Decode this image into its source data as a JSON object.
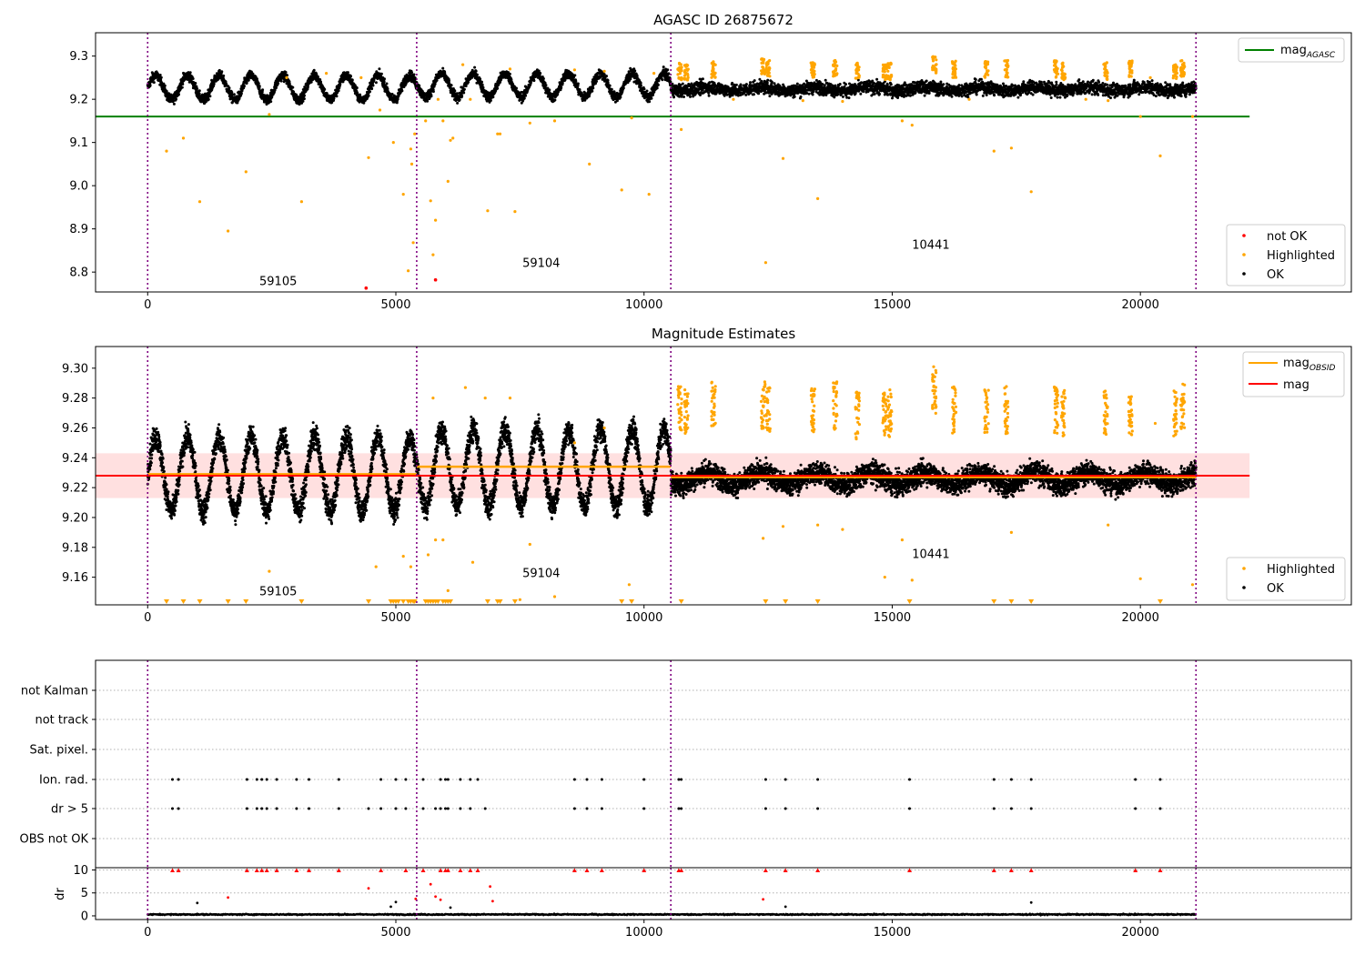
{
  "figure": {
    "suptitle": "AGASC ID 26875672"
  },
  "chart_data": [
    {
      "type": "scatter",
      "title": "AGASC ID 26875672",
      "xlim": [
        -1050,
        24250
      ],
      "ylim": [
        8.754,
        9.354
      ],
      "xticks": [
        0,
        5000,
        10000,
        15000,
        20000
      ],
      "yticks": [
        8.8,
        8.9,
        9.0,
        9.1,
        9.2,
        9.3
      ],
      "ytick_labels": [
        "8.8",
        "8.9",
        "9.0",
        "9.1",
        "9.2",
        "9.3"
      ],
      "obsid_boundaries": [
        0,
        5420,
        10540,
        21120
      ],
      "obsid_labels": [
        {
          "text": "59105",
          "x": 2250,
          "y": 8.77
        },
        {
          "text": "59104",
          "x": 7550,
          "y": 8.812
        },
        {
          "text": "10441",
          "x": 15400,
          "y": 8.854
        }
      ],
      "agasc_mag": 9.16,
      "agasc_line_x": [
        -1050,
        22200
      ],
      "ok_band": {
        "segments": [
          {
            "x0": 0,
            "x1": 5420,
            "mean": 9.227,
            "amp": 0.028,
            "period": 640,
            "noise": 0.012
          },
          {
            "x0": 5420,
            "x1": 10540,
            "mean": 9.232,
            "amp": 0.027,
            "period": 640,
            "noise": 0.012
          },
          {
            "x0": 10540,
            "x1": 21120,
            "mean": 9.224,
            "amp": 0.004,
            "period": 1100,
            "noise": 0.016
          }
        ],
        "color": "#000000"
      },
      "highlighted_clusters": [
        [
          10720,
          9.265
        ],
        [
          10850,
          9.262
        ],
        [
          11400,
          9.27
        ],
        [
          12400,
          9.275
        ],
        [
          12500,
          9.27
        ],
        [
          13400,
          9.27
        ],
        [
          13850,
          9.272
        ],
        [
          14300,
          9.265
        ],
        [
          14850,
          9.262
        ],
        [
          14950,
          9.265
        ],
        [
          15850,
          9.28
        ],
        [
          16250,
          9.27
        ],
        [
          16900,
          9.268
        ],
        [
          17300,
          9.27
        ],
        [
          18300,
          9.27
        ],
        [
          18450,
          9.265
        ],
        [
          19300,
          9.265
        ],
        [
          19800,
          9.27
        ],
        [
          20700,
          9.265
        ],
        [
          20850,
          9.27
        ]
      ],
      "highlighted_points": [
        [
          380,
          9.08
        ],
        [
          720,
          9.11
        ],
        [
          1050,
          8.963
        ],
        [
          1620,
          8.895
        ],
        [
          1980,
          9.032
        ],
        [
          2450,
          9.165
        ],
        [
          3100,
          8.963
        ],
        [
          4450,
          9.065
        ],
        [
          4680,
          9.175
        ],
        [
          4950,
          9.1
        ],
        [
          5150,
          8.98
        ],
        [
          5250,
          8.803
        ],
        [
          5300,
          9.085
        ],
        [
          5320,
          9.05
        ],
        [
          5350,
          8.868
        ],
        [
          5380,
          9.12
        ],
        [
          5600,
          9.15
        ],
        [
          5700,
          8.965
        ],
        [
          5750,
          8.84
        ],
        [
          5800,
          8.92
        ],
        [
          5850,
          9.2
        ],
        [
          5950,
          9.15
        ],
        [
          6050,
          9.01
        ],
        [
          6100,
          9.105
        ],
        [
          6150,
          9.11
        ],
        [
          6500,
          9.2
        ],
        [
          6850,
          8.942
        ],
        [
          7050,
          9.12
        ],
        [
          7100,
          9.12
        ],
        [
          7400,
          8.94
        ],
        [
          7700,
          9.145
        ],
        [
          8200,
          9.15
        ],
        [
          8900,
          9.05
        ],
        [
          9550,
          8.99
        ],
        [
          9750,
          9.157
        ],
        [
          10100,
          8.98
        ],
        [
          10750,
          9.13
        ],
        [
          12450,
          8.822
        ],
        [
          12800,
          9.063
        ],
        [
          13500,
          8.97
        ],
        [
          14000,
          9.195
        ],
        [
          15200,
          9.15
        ],
        [
          15400,
          9.14
        ],
        [
          17050,
          9.08
        ],
        [
          17400,
          9.087
        ],
        [
          17800,
          8.986
        ],
        [
          19350,
          9.197
        ],
        [
          20000,
          9.16
        ],
        [
          20400,
          9.069
        ],
        [
          21050,
          9.16
        ],
        [
          2800,
          9.25
        ],
        [
          3600,
          9.26
        ],
        [
          4300,
          9.25
        ],
        [
          6350,
          9.28
        ],
        [
          7300,
          9.27
        ],
        [
          8600,
          9.268
        ],
        [
          9200,
          9.265
        ],
        [
          10200,
          9.26
        ],
        [
          11800,
          9.2
        ],
        [
          13200,
          9.197
        ],
        [
          16550,
          9.2
        ],
        [
          18900,
          9.2
        ],
        [
          20200,
          9.25
        ]
      ],
      "not_ok_points": [
        [
          4400,
          8.763
        ],
        [
          5800,
          8.782
        ]
      ],
      "legend_upper": [
        {
          "label": "mag",
          "subscript": "AGASC",
          "color": "#008000",
          "kind": "line"
        }
      ],
      "legend_lower": [
        {
          "label": "not OK",
          "color": "#ff0000",
          "kind": "dot"
        },
        {
          "label": "Highlighted",
          "color": "#ffa500",
          "kind": "dot"
        },
        {
          "label": "OK",
          "color": "#000000",
          "kind": "dot"
        }
      ]
    },
    {
      "type": "scatter",
      "title": "Magnitude Estimates",
      "xlim": [
        -1050,
        24250
      ],
      "ylim": [
        9.1415,
        9.3145
      ],
      "xticks": [
        0,
        5000,
        10000,
        15000,
        20000
      ],
      "yticks": [
        9.16,
        9.18,
        9.2,
        9.22,
        9.24,
        9.26,
        9.28,
        9.3
      ],
      "ytick_labels": [
        "9.16",
        "9.18",
        "9.20",
        "9.22",
        "9.24",
        "9.26",
        "9.28",
        "9.30"
      ],
      "obsid_boundaries": [
        0,
        5420,
        10540,
        21120
      ],
      "obsid_labels": [
        {
          "text": "59105",
          "x": 2250,
          "y": 9.148
        },
        {
          "text": "59104",
          "x": 7550,
          "y": 9.16
        },
        {
          "text": "10441",
          "x": 15400,
          "y": 9.173
        }
      ],
      "mag_overall": 9.228,
      "mag_band": [
        9.213,
        9.243
      ],
      "mag_line_x": [
        -1050,
        22200
      ],
      "mag_obsid": [
        {
          "x0": 0,
          "x1": 5420,
          "y": 9.229
        },
        {
          "x0": 5420,
          "x1": 10540,
          "y": 9.234
        },
        {
          "x0": 10540,
          "x1": 21120,
          "y": 9.227
        }
      ],
      "ok_band": {
        "segments": [
          {
            "x0": 0,
            "x1": 5420,
            "mean": 9.229,
            "amp": 0.025,
            "period": 640,
            "noise": 0.009
          },
          {
            "x0": 5420,
            "x1": 10540,
            "mean": 9.233,
            "amp": 0.026,
            "period": 640,
            "noise": 0.009
          },
          {
            "x0": 10540,
            "x1": 21120,
            "mean": 9.226,
            "amp": 0.004,
            "period": 1100,
            "noise": 0.008
          }
        ],
        "color": "#000000"
      },
      "highlighted_clusters": [
        [
          10720,
          9.272
        ],
        [
          10850,
          9.27
        ],
        [
          11400,
          9.275
        ],
        [
          12400,
          9.275
        ],
        [
          12500,
          9.272
        ],
        [
          13400,
          9.272
        ],
        [
          13850,
          9.275
        ],
        [
          14300,
          9.268
        ],
        [
          14850,
          9.268
        ],
        [
          14950,
          9.27
        ],
        [
          15850,
          9.285
        ],
        [
          16250,
          9.272
        ],
        [
          16900,
          9.27
        ],
        [
          17300,
          9.272
        ],
        [
          18300,
          9.272
        ],
        [
          18450,
          9.27
        ],
        [
          19300,
          9.27
        ],
        [
          19800,
          9.27
        ],
        [
          20700,
          9.27
        ],
        [
          20850,
          9.275
        ]
      ],
      "highlighted_points": [
        [
          2450,
          9.164
        ],
        [
          4600,
          9.167
        ],
        [
          5150,
          9.174
        ],
        [
          5300,
          9.167
        ],
        [
          5650,
          9.175
        ],
        [
          5800,
          9.185
        ],
        [
          5950,
          9.185
        ],
        [
          6050,
          9.151
        ],
        [
          6550,
          9.17
        ],
        [
          7500,
          9.145
        ],
        [
          7700,
          9.182
        ],
        [
          8200,
          9.147
        ],
        [
          9700,
          9.155
        ],
        [
          12400,
          9.186
        ],
        [
          12800,
          9.194
        ],
        [
          13500,
          9.195
        ],
        [
          14000,
          9.192
        ],
        [
          15200,
          9.185
        ],
        [
          15400,
          9.158
        ],
        [
          17400,
          9.19
        ],
        [
          19350,
          9.195
        ],
        [
          20000,
          9.159
        ],
        [
          21050,
          9.155
        ],
        [
          14850,
          9.16
        ],
        [
          5750,
          9.28
        ],
        [
          6400,
          9.287
        ],
        [
          6800,
          9.28
        ],
        [
          7300,
          9.28
        ],
        [
          8600,
          9.25
        ],
        [
          9200,
          9.26
        ],
        [
          20300,
          9.263
        ]
      ],
      "floor_markers_x": [
        380,
        720,
        1050,
        1620,
        1980,
        3100,
        4450,
        4900,
        4950,
        5000,
        5050,
        5150,
        5250,
        5300,
        5350,
        5380,
        5600,
        5650,
        5700,
        5750,
        5800,
        5850,
        5950,
        6000,
        6050,
        6100,
        6850,
        7050,
        7100,
        7400,
        9550,
        9750,
        10750,
        12450,
        12850,
        13500,
        15350,
        17050,
        17400,
        17800,
        20400
      ],
      "legend_upper": [
        {
          "label": "mag",
          "subscript": "OBSID",
          "color": "#ffa500",
          "kind": "line"
        },
        {
          "label": "mag",
          "subscript": "",
          "color": "#ff0000",
          "kind": "line"
        }
      ],
      "legend_lower": [
        {
          "label": "Highlighted",
          "color": "#ffa500",
          "kind": "dot"
        },
        {
          "label": "OK",
          "color": "#000000",
          "kind": "dot"
        }
      ]
    },
    {
      "type": "scatter",
      "title": "",
      "xlim": [
        -1050,
        24250
      ],
      "xticks": [
        0,
        5000,
        10000,
        15000,
        20000
      ],
      "obsid_boundaries": [
        0,
        5420,
        10540,
        21120
      ],
      "flag_rows": [
        "not Kalman",
        "not track",
        "Sat. pixel.",
        "Ion. rad.",
        "dr > 5",
        "OBS not OK"
      ],
      "flag_events": {
        "Ion. rad.": [
          500,
          620,
          2000,
          2200,
          2300,
          2400,
          2600,
          3000,
          3250,
          3850,
          4700,
          5000,
          5200,
          5550,
          5900,
          6000,
          6050,
          6300,
          6500,
          6650,
          8600,
          8850,
          9150,
          10000,
          10700,
          10750,
          12450,
          12850,
          13500,
          15350,
          17050,
          17400,
          17800,
          19900,
          20400
        ],
        "dr > 5": [
          500,
          620,
          2000,
          2200,
          2300,
          2400,
          2600,
          3000,
          3250,
          3850,
          4450,
          4700,
          5000,
          5200,
          5550,
          5800,
          5900,
          6000,
          6050,
          6300,
          6500,
          6800,
          8600,
          8850,
          9150,
          10000,
          10700,
          10750,
          12450,
          12850,
          13500,
          15350,
          17050,
          17400,
          17800,
          19900,
          20400
        ]
      },
      "dr": {
        "ylabel": "dr",
        "yticks": [
          0,
          5,
          10
        ],
        "ylim": [
          -0.8,
          10.5
        ],
        "clip": 10,
        "baseline": 0.3,
        "outliers": [
          [
            1000,
            2.8
          ],
          [
            1620,
            4.0
          ],
          [
            4450,
            6.0
          ],
          [
            5000,
            3.0
          ],
          [
            5400,
            3.7
          ],
          [
            5800,
            4.2
          ],
          [
            5900,
            3.5
          ],
          [
            5700,
            6.9
          ],
          [
            6900,
            6.4
          ],
          [
            6950,
            3.2
          ],
          [
            4900,
            2.0
          ],
          [
            6100,
            1.8
          ],
          [
            12400,
            3.6
          ],
          [
            12850,
            2.0
          ],
          [
            17800,
            2.9
          ]
        ],
        "clipped_x": [
          500,
          620,
          2000,
          2200,
          2300,
          2400,
          2600,
          3000,
          3250,
          3850,
          4700,
          5200,
          5550,
          5900,
          6000,
          6050,
          6300,
          6500,
          6650,
          8600,
          8850,
          9150,
          10000,
          10700,
          10750,
          12450,
          12850,
          13500,
          15350,
          17050,
          17400,
          17800,
          19900,
          20400
        ]
      }
    }
  ]
}
